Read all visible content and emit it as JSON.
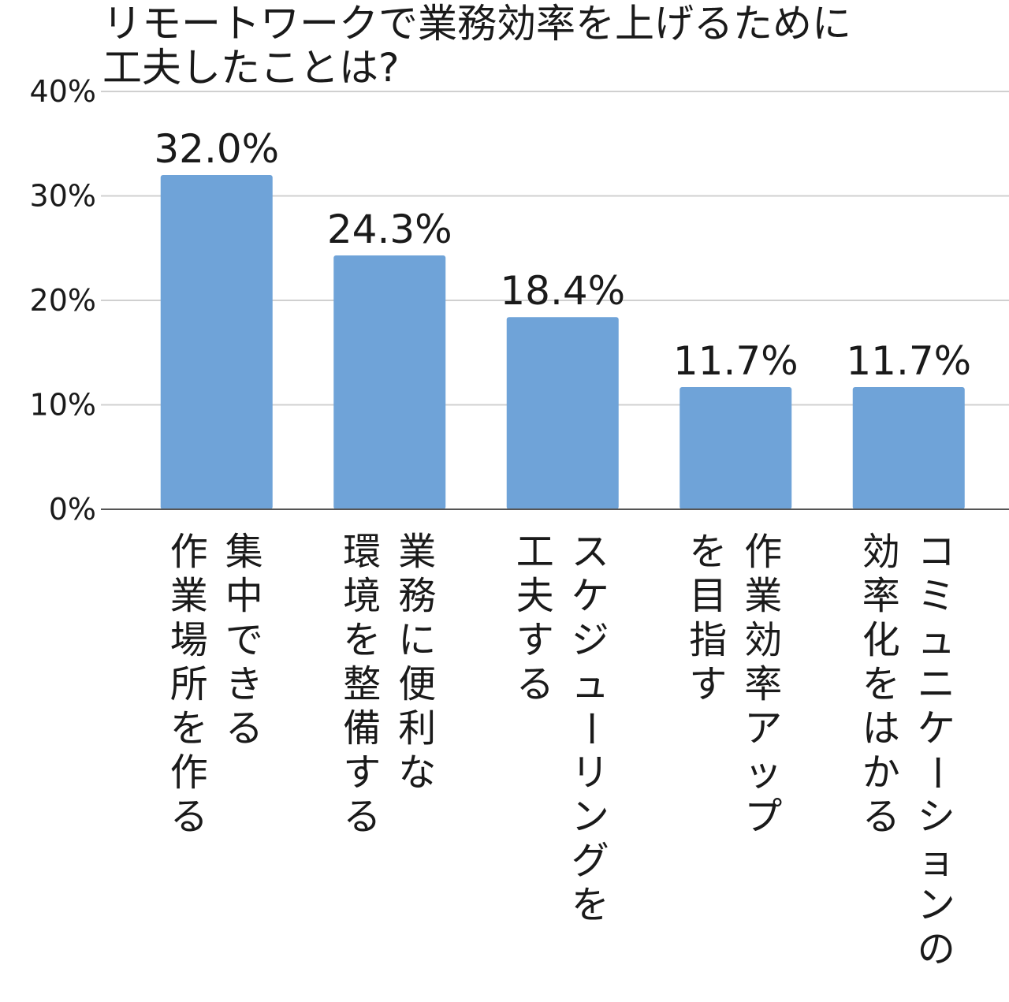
{
  "chart_data": {
    "type": "bar",
    "title_lines": [
      "リモートワークで業務効率を上げるために",
      "工夫したことは?"
    ],
    "categories": [
      [
        "集中できる",
        "作業場所を作る"
      ],
      [
        "業務に便利な",
        "環境を整備する"
      ],
      [
        "スケジューリングを",
        "工夫する"
      ],
      [
        "作業効率アップ",
        "を目指す"
      ],
      [
        "コミュニケーションの",
        "効率化をはかる"
      ]
    ],
    "values": [
      32.0,
      24.3,
      18.4,
      11.7,
      11.7
    ],
    "data_labels": [
      "32.0%",
      "24.3%",
      "18.4%",
      "11.7%",
      "11.7%"
    ],
    "yticks": [
      0,
      10,
      20,
      30,
      40
    ],
    "ytick_labels": [
      "0%",
      "10%",
      "20%",
      "30%",
      "40%"
    ],
    "ylim": [
      0,
      40
    ],
    "grid": true,
    "bar_color": "#6fa3d8",
    "grid_color": "#d0d0d0",
    "axis_color": "#555555"
  }
}
